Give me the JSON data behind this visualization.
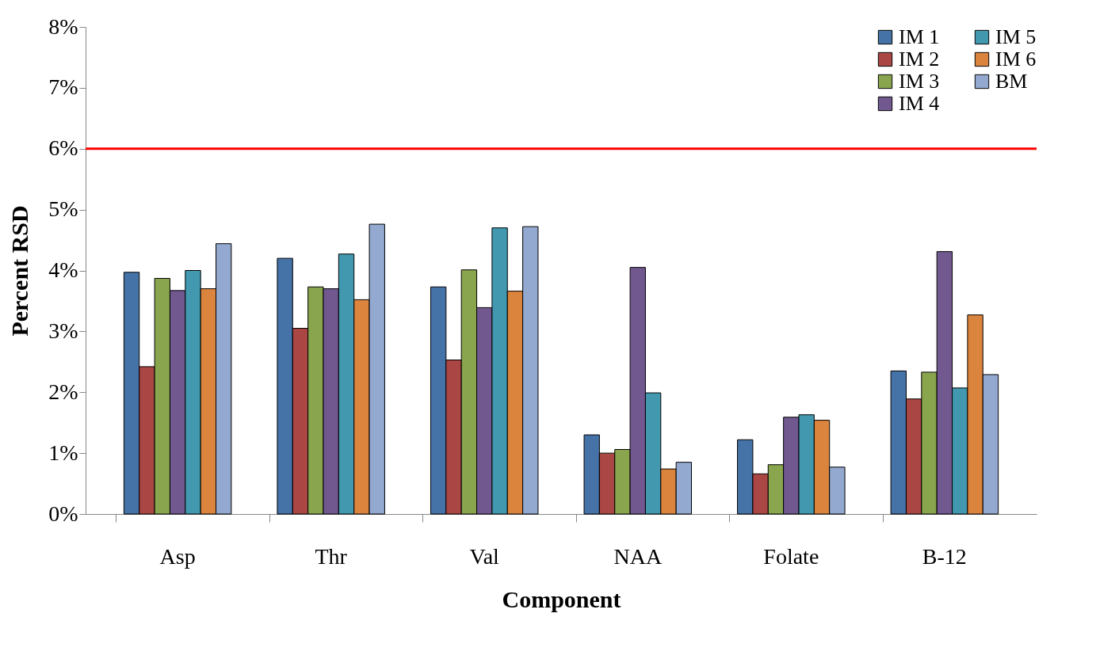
{
  "chart_data": {
    "type": "bar",
    "xlabel": "Component",
    "ylabel": "Percent RSD",
    "categories": [
      "Asp",
      "Thr",
      "Val",
      "NAA",
      "Folate",
      "B-12"
    ],
    "series": [
      {
        "name": "IM 1",
        "color": "#4572a7",
        "values": [
          3.97,
          4.2,
          3.73,
          1.3,
          1.22,
          2.35
        ]
      },
      {
        "name": "IM 2",
        "color": "#aa4643",
        "values": [
          2.42,
          3.05,
          2.53,
          1.0,
          0.66,
          1.89
        ]
      },
      {
        "name": "IM 3",
        "color": "#89a54e",
        "values": [
          3.87,
          3.73,
          4.01,
          1.06,
          0.81,
          2.33
        ]
      },
      {
        "name": "IM 4",
        "color": "#71588f",
        "values": [
          3.67,
          3.7,
          3.39,
          4.05,
          1.59,
          4.31
        ]
      },
      {
        "name": "IM 5",
        "color": "#4198af",
        "values": [
          4.0,
          4.27,
          4.7,
          1.99,
          1.63,
          2.07
        ]
      },
      {
        "name": "IM 6",
        "color": "#db843d",
        "values": [
          3.7,
          3.52,
          3.66,
          0.74,
          1.54,
          3.27
        ]
      },
      {
        "name": "BM",
        "color": "#93a9cf",
        "values": [
          4.44,
          4.76,
          4.72,
          0.85,
          0.77,
          2.29
        ]
      }
    ],
    "ylim": [
      0,
      8
    ],
    "yticks": [
      {
        "value": 0,
        "label": "0%"
      },
      {
        "value": 1,
        "label": "1%"
      },
      {
        "value": 2,
        "label": "2%"
      },
      {
        "value": 3,
        "label": "3%"
      },
      {
        "value": 4,
        "label": "4%"
      },
      {
        "value": 5,
        "label": "5%"
      },
      {
        "value": 6,
        "label": "6%"
      },
      {
        "value": 7,
        "label": "7%"
      },
      {
        "value": 8,
        "label": "8%"
      }
    ],
    "ref_lines": [
      {
        "axis": "y",
        "value": 6,
        "color": "#ff0000"
      }
    ],
    "grid": false,
    "legend": "top right"
  }
}
